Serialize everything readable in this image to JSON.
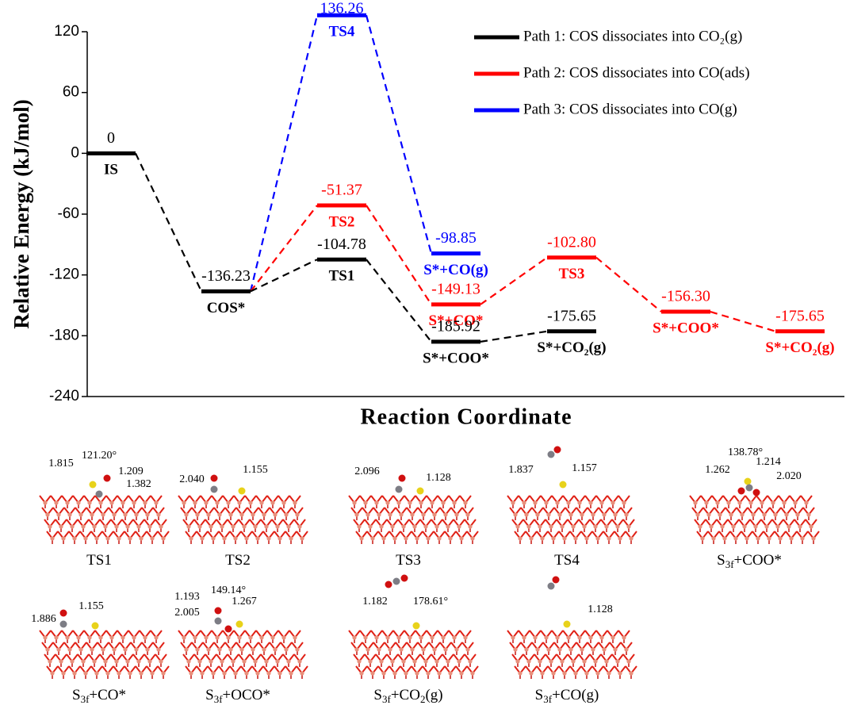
{
  "chart_data": {
    "type": "line",
    "y_label": "Relative Energy (kJ/mol)",
    "x_label": "Reaction Coordinate",
    "ylim": [
      -240,
      120
    ],
    "yticks": [
      -240,
      -180,
      -120,
      -60,
      0,
      60,
      120
    ],
    "legend": "upper right",
    "categories": [
      null,
      null,
      null,
      null,
      null,
      null,
      null
    ],
    "series": [
      {
        "name": "Path 1: COS dissociates into CO₂(g)",
        "color": "#000000",
        "values": [
          0,
          -136.23,
          -104.78,
          -185.92,
          -175.65,
          null,
          null
        ],
        "value_labels": [
          "0",
          "-136.23",
          "-104.78",
          "-185.92",
          "-175.65",
          null,
          null
        ],
        "level_labels": [
          "IS",
          "COS*",
          "TS1",
          "S*+COO*",
          "S*+CO₂(g)",
          null,
          null
        ]
      },
      {
        "name": "Path 2: COS dissociates into CO(ads)",
        "color": "#ff0000",
        "values": [
          null,
          -136.23,
          -51.37,
          -149.13,
          -102.8,
          -156.3,
          -175.65
        ],
        "value_labels": [
          null,
          null,
          "-51.37",
          "-149.13",
          "-102.80",
          "-156.30",
          "-175.65"
        ],
        "level_labels": [
          null,
          null,
          "TS2",
          "S*+CO*",
          "TS3",
          "S*+COO*",
          "S*+CO₂(g)"
        ]
      },
      {
        "name": "Path 3: COS dissociates into CO(g)",
        "color": "#0000ff",
        "values": [
          null,
          -136.23,
          136.26,
          -98.85,
          null,
          null,
          null
        ],
        "value_labels": [
          null,
          null,
          "136.26",
          "-98.85",
          null,
          null,
          null
        ],
        "level_labels": [
          null,
          null,
          "TS4",
          "S*+CO(g)",
          null,
          null,
          null
        ]
      }
    ]
  },
  "structures": [
    {
      "caption": [
        "TS1"
      ],
      "labels": [
        "1.815",
        "121.20°",
        "1.209",
        "1.382"
      ]
    },
    {
      "caption": [
        "TS2"
      ],
      "labels": [
        "2.040",
        "1.155"
      ]
    },
    {
      "caption": [
        "TS3"
      ],
      "labels": [
        "2.096",
        "1.128"
      ]
    },
    {
      "caption": [
        "TS4"
      ],
      "labels": [
        "1.837",
        "1.157"
      ]
    },
    {
      "caption": [
        "S",
        "3f",
        "+COO*"
      ],
      "labels": [
        "138.78°",
        "1.214",
        "1.262",
        "2.020"
      ]
    },
    {
      "caption": [
        "S",
        "3f",
        "+CO*"
      ],
      "labels": [
        "1.886",
        "1.155"
      ]
    },
    {
      "caption": [
        "S",
        "3f",
        "+OCO*"
      ],
      "labels": [
        "1.193",
        "149.14°",
        "1.267",
        "2.005"
      ]
    },
    {
      "caption": [
        "S",
        "3f",
        "+CO",
        "2",
        "(g)"
      ],
      "labels": [
        "1.182",
        "178.61°"
      ]
    },
    {
      "caption": [
        "S",
        "3f",
        "+CO(g)"
      ],
      "labels": [
        "1.128"
      ]
    }
  ]
}
